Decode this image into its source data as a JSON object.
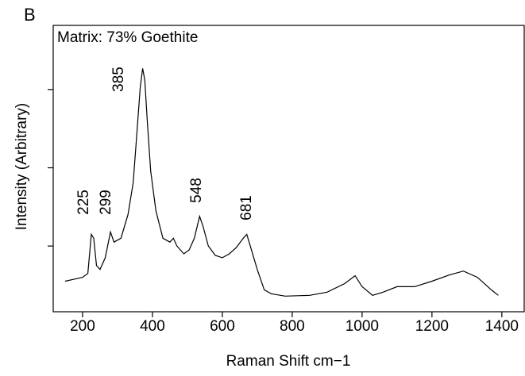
{
  "chart_data": {
    "type": "line",
    "panel_label": "B",
    "title": "Matrix: 73% Goethite",
    "xlabel": "Raman Shift cm−1",
    "ylabel": "Intensity (Arbitrary)",
    "color": "#000000",
    "xlim": [
      116,
      1464
    ],
    "xticks": [
      200,
      400,
      600,
      800,
      1000,
      1200,
      1400
    ],
    "ylim": [
      0.16,
      3.82
    ],
    "yticks": [
      1,
      2,
      3
    ],
    "ytick_labels": false,
    "x": [
      150,
      180,
      200,
      215,
      225,
      232,
      240,
      250,
      265,
      280,
      290,
      310,
      330,
      345,
      355,
      365,
      372,
      378,
      385,
      395,
      410,
      430,
      450,
      460,
      470,
      490,
      505,
      520,
      535,
      545,
      560,
      580,
      600,
      620,
      640,
      660,
      670,
      680,
      700,
      720,
      740,
      780,
      850,
      900,
      950,
      980,
      1000,
      1030,
      1060,
      1100,
      1150,
      1200,
      1250,
      1290,
      1330,
      1370,
      1390
    ],
    "values": [
      0.55,
      0.58,
      0.6,
      0.65,
      1.15,
      1.1,
      0.75,
      0.7,
      0.85,
      1.18,
      1.05,
      1.1,
      1.4,
      1.81,
      2.41,
      3.02,
      3.27,
      3.12,
      2.62,
      1.96,
      1.45,
      1.1,
      1.05,
      1.1,
      1.0,
      0.9,
      0.95,
      1.1,
      1.38,
      1.25,
      1.0,
      0.88,
      0.85,
      0.9,
      0.98,
      1.1,
      1.15,
      1.0,
      0.7,
      0.44,
      0.39,
      0.36,
      0.37,
      0.41,
      0.52,
      0.62,
      0.48,
      0.37,
      0.41,
      0.48,
      0.48,
      0.55,
      0.63,
      0.68,
      0.6,
      0.44,
      0.37
    ],
    "annotations": [
      "225",
      "299",
      "385",
      "548",
      "681"
    ]
  }
}
